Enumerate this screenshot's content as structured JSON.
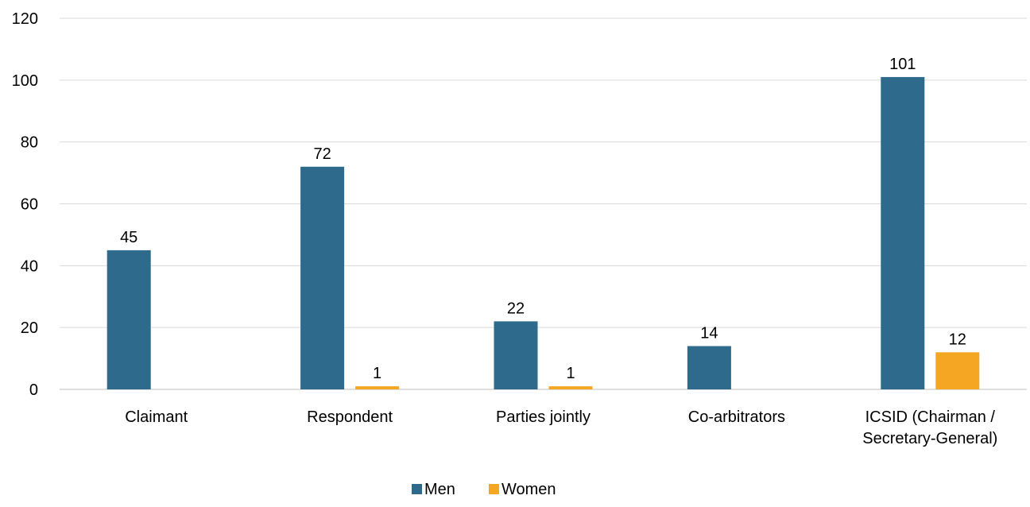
{
  "chart_data": {
    "type": "bar",
    "categories": [
      [
        "Claimant"
      ],
      [
        "Respondent"
      ],
      [
        "Parties jointly"
      ],
      [
        "Co-arbitrators"
      ],
      [
        "ICSID (Chairman /",
        "Secretary-General)"
      ]
    ],
    "series": [
      {
        "name": "Men",
        "color": "#2E6A8B",
        "values": [
          45,
          72,
          22,
          14,
          101
        ]
      },
      {
        "name": "Women",
        "color": "#F5A623",
        "values": [
          null,
          1,
          1,
          null,
          12
        ]
      }
    ],
    "ylim": [
      0,
      120
    ],
    "yticks": [
      0,
      20,
      40,
      60,
      80,
      100,
      120
    ],
    "grid": true,
    "legend_position": "bottom-center",
    "title": "",
    "xlabel": "",
    "ylabel": ""
  },
  "colors": {
    "grid": "#D9D9D9",
    "axis": "#BFBFBF",
    "text": "#000000"
  }
}
